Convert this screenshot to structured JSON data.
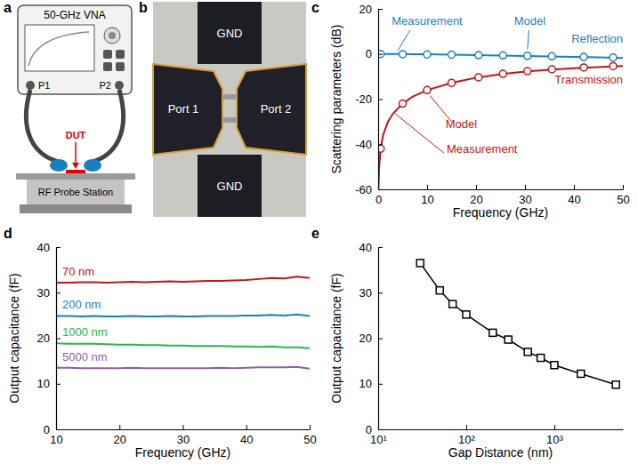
{
  "panels": [
    {
      "label": "a",
      "instrument": "50-GHz VNA",
      "ports": [
        "P1",
        "P2"
      ],
      "dut": "DUT",
      "station": "RF Probe Station"
    },
    {
      "label": "b",
      "pads": [
        "GND",
        "GND"
      ],
      "ports": [
        "Port 1",
        "Port 2"
      ]
    }
  ],
  "chart_data": [
    {
      "panel": "c",
      "type": "line",
      "x_label": "Frequency (GHz)",
      "y_label": "Scattering parameters (dB)",
      "xlim": [
        0,
        50
      ],
      "xticks": [
        0,
        10,
        20,
        30,
        40,
        50
      ],
      "ylim": [
        -60,
        20
      ],
      "yticks": [
        -60,
        -40,
        -20,
        0,
        20
      ],
      "annotations": [
        "Measurement",
        "Model",
        "Reflection",
        "Model",
        "Transmission",
        "Measurement"
      ],
      "series": [
        {
          "color": "#1a7fc1",
          "type": "line",
          "line_style": "solid",
          "x": [
            0.05,
            0.1,
            0.2,
            0.5,
            1,
            2,
            3,
            5,
            7,
            10,
            15,
            20,
            25,
            30,
            35,
            40,
            45,
            50
          ],
          "values": [
            0,
            0,
            0,
            0,
            0,
            0,
            0,
            0,
            -0.05,
            -0.1,
            -0.3,
            -0.5,
            -0.7,
            -0.9,
            -1.1,
            -1.3,
            -1.5,
            -1.8
          ]
        },
        {
          "color": "#1a7fc1",
          "type": "scatter",
          "marker": "circle",
          "x": [
            0.5,
            5,
            10,
            15,
            20.5,
            25.5,
            30.5,
            35.5,
            42,
            48
          ],
          "values": [
            0,
            -0.1,
            -0.2,
            -0.3,
            -0.5,
            -0.6,
            -0.8,
            -1,
            -1.3,
            -1.6
          ]
        },
        {
          "color": "#c0151b",
          "type": "line",
          "line_style": "solid",
          "x": [
            0.05,
            0.1,
            0.2,
            0.5,
            1,
            2,
            3,
            5,
            7,
            10,
            15,
            20,
            25,
            30,
            35,
            40,
            45,
            50
          ],
          "values": [
            -60,
            -56,
            -50,
            -42,
            -36,
            -30,
            -26.5,
            -22,
            -19,
            -16,
            -12.8,
            -10.5,
            -9,
            -7.8,
            -7,
            -6.3,
            -5.8,
            -5.3
          ]
        },
        {
          "color": "#c0151b",
          "type": "scatter",
          "marker": "circle",
          "x": [
            0.5,
            5,
            10,
            15,
            20.5,
            25.5,
            30.5,
            35.5,
            42,
            48
          ],
          "values": [
            -42,
            -22,
            -16,
            -12.8,
            -10.3,
            -8.8,
            -7.6,
            -6.8,
            -6,
            -5.4
          ]
        }
      ]
    },
    {
      "panel": "d",
      "type": "line",
      "x_label": "Frequency (GHz)",
      "y_label": "Output capacitance (fF)",
      "xlim": [
        10,
        50
      ],
      "xticks": [
        10,
        20,
        30,
        40,
        50
      ],
      "ylim": [
        0,
        40
      ],
      "yticks": [
        0,
        10,
        20,
        30,
        40
      ],
      "x": [
        10,
        12,
        14,
        16,
        18,
        20,
        22,
        24,
        26,
        28,
        30,
        32,
        34,
        36,
        38,
        40,
        42,
        44,
        46,
        48,
        50
      ],
      "series": [
        {
          "name": "70 nm",
          "color": "#c0151b",
          "values": [
            32.2,
            32.2,
            32.3,
            32.3,
            32.2,
            32.3,
            32.4,
            32.3,
            32.4,
            32.5,
            32.4,
            32.5,
            32.6,
            32.6,
            32.7,
            32.8,
            33.0,
            33.2,
            33.1,
            33.5,
            33.2
          ]
        },
        {
          "name": "200 nm",
          "color": "#1a7fc1",
          "values": [
            24.9,
            24.9,
            24.8,
            24.9,
            24.8,
            24.8,
            24.9,
            24.8,
            24.8,
            24.9,
            24.8,
            24.8,
            24.9,
            24.9,
            24.9,
            25.0,
            25.0,
            25.1,
            25.0,
            25.2,
            24.9
          ]
        },
        {
          "name": "1000 nm",
          "color": "#2db34a",
          "values": [
            18.9,
            18.8,
            18.8,
            18.8,
            18.7,
            18.6,
            18.6,
            18.5,
            18.5,
            18.4,
            18.4,
            18.3,
            18.3,
            18.3,
            18.2,
            18.2,
            18.1,
            18.2,
            18.0,
            18.0,
            17.8
          ]
        },
        {
          "name": "5000 nm",
          "color": "#8e5fa8",
          "values": [
            13.5,
            13.5,
            13.4,
            13.4,
            13.4,
            13.4,
            13.5,
            13.4,
            13.4,
            13.4,
            13.4,
            13.4,
            13.4,
            13.5,
            13.4,
            13.5,
            13.6,
            13.6,
            13.6,
            13.7,
            13.3
          ]
        }
      ]
    },
    {
      "panel": "e",
      "type": "line",
      "log": "x",
      "x_label": "Gap Distance (nm)",
      "y_label": "Output capacitance (fF)",
      "xlim": [
        10,
        6000
      ],
      "xticks": [
        {
          "value": 10,
          "label": "10¹"
        },
        {
          "value": 100,
          "label": "10²"
        },
        {
          "value": 1000,
          "label": "10³"
        }
      ],
      "ylim": [
        0,
        40
      ],
      "yticks": [
        0,
        10,
        20,
        30,
        40
      ],
      "x": [
        30,
        50,
        70,
        100,
        200,
        300,
        500,
        700,
        1000,
        2000,
        5000
      ],
      "series": [
        {
          "color": "#000000",
          "marker": "square",
          "line_style": "solid",
          "values": [
            36.5,
            30.5,
            27.5,
            25.2,
            21.2,
            19.7,
            17.0,
            15.7,
            14.1,
            12.2,
            9.8
          ]
        }
      ]
    }
  ]
}
